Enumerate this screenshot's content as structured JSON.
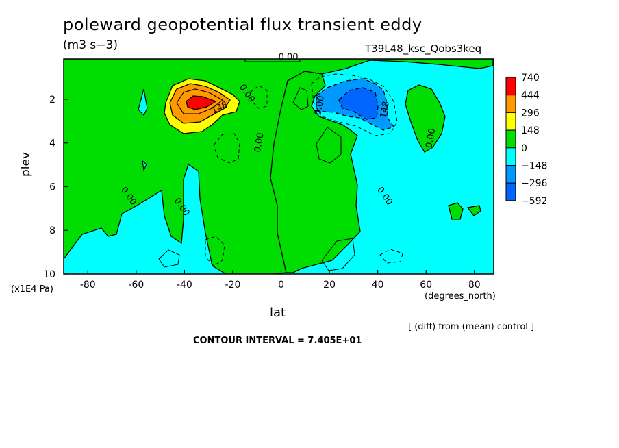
{
  "figure": {
    "title": "poleward geopotential flux transient eddy",
    "units": "(m3 s−3)",
    "run_label": "T39L48_ksc_Qobs3keq",
    "diff_note": "[ (diff) from (mean) control ]",
    "contour_interval": "CONTOUR INTERVAL = 7.405E+01"
  },
  "chart_data": {
    "type": "heatmap",
    "xlabel": "lat",
    "x_unit": "(degrees_north)",
    "ylabel": "plev",
    "y_unit": "(x1E4 Pa)",
    "xlim": [
      -90,
      88
    ],
    "ylim": [
      10,
      0.15
    ],
    "x_ticks": [
      -80,
      -60,
      -40,
      -20,
      0,
      20,
      40,
      60,
      80
    ],
    "y_ticks": [
      2,
      4,
      6,
      8,
      10
    ],
    "colorbar": {
      "levels": [
        "740",
        "444",
        "296",
        "148",
        "0",
        "−148",
        "−296",
        "−592"
      ],
      "colors": [
        "#ff0000",
        "#ff9900",
        "#ffff00",
        "#00dd00",
        "#00ffff",
        "#0099ff",
        "#0066ff"
      ]
    },
    "contour_labels": [
      {
        "text": "0.00",
        "lat": 3,
        "plev": 0.2
      },
      {
        "text": "0.00",
        "lat": -15,
        "plev": 1.8
      },
      {
        "text": "148",
        "lat": -25,
        "plev": 2.5
      },
      {
        "text": "0.00",
        "lat": -8,
        "plev": 4.0
      },
      {
        "text": "0.00",
        "lat": -64,
        "plev": 6.5
      },
      {
        "text": "0.00",
        "lat": -42,
        "plev": 7.0
      },
      {
        "text": "0.00",
        "lat": 17,
        "plev": 2.3
      },
      {
        "text": "148",
        "lat": 44,
        "plev": 2.5
      },
      {
        "text": "0.00",
        "lat": 63,
        "plev": 3.8
      },
      {
        "text": "0.00",
        "lat": 42,
        "plev": 6.5
      }
    ],
    "features": [
      {
        "kind": "max",
        "lat": -35,
        "plev": 2.2,
        "value": 740,
        "note": "positive maximum, southern hemisphere"
      },
      {
        "kind": "min",
        "lat": 36,
        "plev": 2.4,
        "value": -592,
        "note": "negative minimum, northern hemisphere"
      }
    ]
  }
}
